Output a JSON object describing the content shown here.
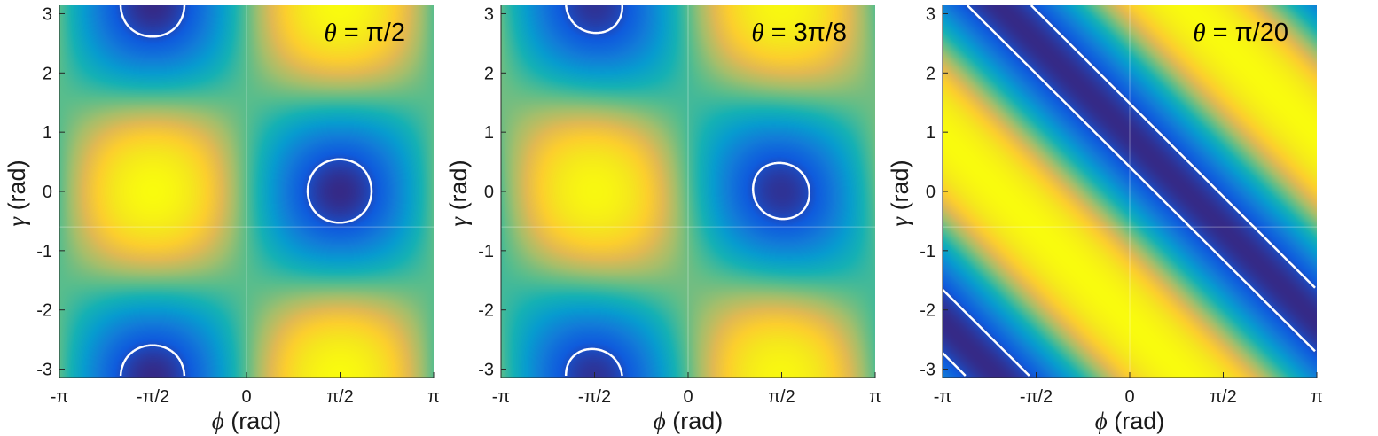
{
  "figure": {
    "colormap": "parula",
    "contour_color": "#ffffff",
    "grid_color": "#ffffff"
  },
  "chart_data": [
    {
      "type": "heatmap",
      "title": "θ = π/2",
      "title_symbol": "θ",
      "title_value": "π/2",
      "theta": 1.5707963,
      "xlabel": "ϕ (rad)",
      "xlabel_symbol": "ϕ",
      "xlabel_unit": "(rad)",
      "ylabel": "γ (rad)",
      "ylabel_symbol": "γ",
      "ylabel_unit": "(rad)",
      "xlim": [
        -3.14159,
        3.14159
      ],
      "ylim": [
        -3.14159,
        3.14159
      ],
      "xticks": [
        -3.14159,
        -1.5708,
        0,
        1.5708,
        3.14159
      ],
      "xticklabels": [
        "-π",
        "-π/2",
        "0",
        "π/2",
        "π"
      ],
      "yticks": [
        3,
        2,
        1,
        0,
        -1,
        -2,
        -3
      ],
      "yticklabels": [
        "3",
        "2",
        "1",
        "0",
        "-1",
        "-2",
        "-3"
      ],
      "contour_level": 0.07,
      "color_range": [
        "low (dark blue)",
        "high (yellow)"
      ],
      "minima": [
        [
          1.5708,
          0
        ],
        [
          -1.5708,
          3.14159
        ],
        [
          -1.5708,
          -3.14159
        ]
      ],
      "maxima": [
        [
          -1.5708,
          0
        ],
        [
          1.5708,
          3.14159
        ],
        [
          1.5708,
          -3.14159
        ]
      ],
      "grid": true
    },
    {
      "type": "heatmap",
      "title": "θ = 3π/8",
      "title_symbol": "θ",
      "title_value": "3π/8",
      "theta": 1.1780972,
      "xlabel": "ϕ (rad)",
      "xlabel_symbol": "ϕ",
      "xlabel_unit": "(rad)",
      "ylabel": "γ (rad)",
      "ylabel_symbol": "γ",
      "ylabel_unit": "(rad)",
      "xlim": [
        -3.14159,
        3.14159
      ],
      "ylim": [
        -3.14159,
        3.14159
      ],
      "xticks": [
        -3.14159,
        -1.5708,
        0,
        1.5708,
        3.14159
      ],
      "xticklabels": [
        "-π",
        "-π/2",
        "0",
        "π/2",
        "π"
      ],
      "yticks": [
        3,
        2,
        1,
        0,
        -1,
        -2,
        -3
      ],
      "yticklabels": [
        "3",
        "2",
        "1",
        "0",
        "-1",
        "-2",
        "-3"
      ],
      "contour_level": 0.07,
      "color_range": [
        "low (dark blue)",
        "high (yellow)"
      ],
      "minima": [
        [
          1.5708,
          0
        ],
        [
          -1.5708,
          3.14159
        ],
        [
          -1.5708,
          -3.14159
        ]
      ],
      "maxima": [
        [
          -1.5708,
          0
        ],
        [
          1.5708,
          3.14159
        ],
        [
          1.5708,
          -3.14159
        ]
      ],
      "grid": true
    },
    {
      "type": "heatmap",
      "title": "θ = π/20",
      "title_symbol": "θ",
      "title_value": "π/20",
      "theta": 0.1570796,
      "xlabel": "ϕ (rad)",
      "xlabel_symbol": "ϕ",
      "xlabel_unit": "(rad)",
      "ylabel": "γ (rad)",
      "ylabel_symbol": "γ",
      "ylabel_unit": "(rad)",
      "xlim": [
        -3.14159,
        3.14159
      ],
      "ylim": [
        -3.14159,
        3.14159
      ],
      "xticks": [
        -3.14159,
        -1.5708,
        0,
        1.5708,
        3.14159
      ],
      "xticklabels": [
        "-π",
        "-π/2",
        "0",
        "π/2",
        "π"
      ],
      "yticks": [
        3,
        2,
        1,
        0,
        -1,
        -2,
        -3
      ],
      "yticklabels": [
        "3",
        "2",
        "1",
        "0",
        "-1",
        "-2",
        "-3"
      ],
      "contour_level": 0.07,
      "color_range": [
        "low (dark blue)",
        "high (yellow)"
      ],
      "minima": [],
      "maxima": [],
      "grid": true
    }
  ]
}
